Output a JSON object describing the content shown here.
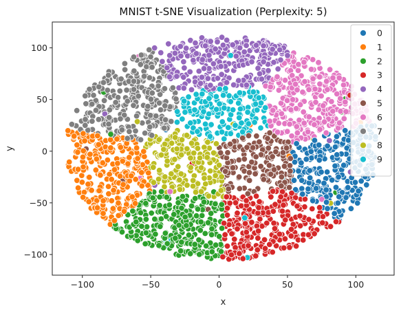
{
  "chart_data": {
    "type": "scatter",
    "title": "MNIST t-SNE Visualization (Perplexity: 5)",
    "xlabel": "x",
    "ylabel": "y",
    "xlim": [
      -122,
      128
    ],
    "ylim": [
      -120,
      125
    ],
    "xticks": [
      "−100",
      "−50",
      "0",
      "50",
      "100"
    ],
    "xtick_values": [
      -100,
      -50,
      0,
      50,
      100
    ],
    "yticks": [
      "−100",
      "−50",
      "0",
      "50",
      "100"
    ],
    "ytick_values": [
      -100,
      -50,
      0,
      50,
      100
    ],
    "grid": false,
    "legend_position": "top-right",
    "series": [
      {
        "name": "0",
        "color": "#1f77b4",
        "center": [
          85,
          -12
        ]
      },
      {
        "name": "1",
        "color": "#ff7f0e",
        "center": [
          -83,
          -22
        ]
      },
      {
        "name": "2",
        "color": "#2ca02c",
        "center": [
          -27,
          -68
        ]
      },
      {
        "name": "3",
        "color": "#d62728",
        "center": [
          33,
          -70
        ]
      },
      {
        "name": "4",
        "color": "#9467bd",
        "center": [
          0,
          83
        ]
      },
      {
        "name": "5",
        "color": "#8c564b",
        "center": [
          22,
          -10
        ]
      },
      {
        "name": "6",
        "color": "#e377c2",
        "center": [
          65,
          42
        ]
      },
      {
        "name": "7",
        "color": "#7f7f7f",
        "center": [
          -68,
          50
        ]
      },
      {
        "name": "8",
        "color": "#bcbd22",
        "center": [
          -20,
          -15
        ]
      },
      {
        "name": "9",
        "color": "#17becf",
        "center": [
          5,
          38
        ]
      }
    ]
  }
}
